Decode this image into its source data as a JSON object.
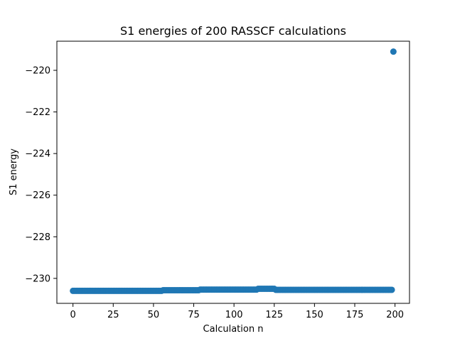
{
  "chart_data": {
    "type": "scatter",
    "title": "S1 energies of 200 RASSCF calculations",
    "xlabel": "Calculation n",
    "ylabel": "S1 energy",
    "xlim": [
      -10,
      209
    ],
    "ylim": [
      -231.2,
      -218.6
    ],
    "xticks": [
      0,
      25,
      50,
      75,
      100,
      125,
      150,
      175,
      200
    ],
    "xtick_labels": [
      "0",
      "25",
      "50",
      "75",
      "100",
      "125",
      "150",
      "175",
      "200"
    ],
    "yticks": [
      -230,
      -228,
      -226,
      -224,
      -222,
      -220
    ],
    "ytick_labels": [
      "−230",
      "−228",
      "−226",
      "−224",
      "−222",
      "−220"
    ],
    "grid": false,
    "legend": "none",
    "marker_color": "#1f77b4",
    "segments": [
      {
        "from": 0,
        "to": 55,
        "y": -230.6
      },
      {
        "from": 56,
        "to": 78,
        "y": -230.57
      },
      {
        "from": 79,
        "to": 114,
        "y": -230.54
      },
      {
        "from": 115,
        "to": 125,
        "y": -230.5
      },
      {
        "from": 126,
        "to": 198,
        "y": -230.55
      }
    ],
    "outliers": [
      {
        "x": 199,
        "y": -219.1
      }
    ]
  }
}
